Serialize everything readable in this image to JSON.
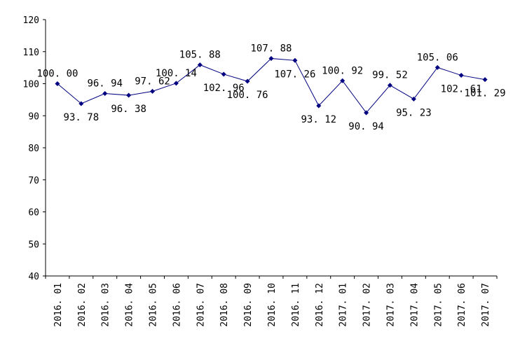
{
  "chart_data": {
    "type": "line",
    "title": "",
    "xlabel": "",
    "ylabel": "",
    "ylim": [
      40,
      120
    ],
    "y_ticks": [
      40,
      50,
      60,
      70,
      80,
      90,
      100,
      110,
      120
    ],
    "grid": false,
    "categories": [
      "2016.01",
      "2016.02",
      "2016.03",
      "2016.04",
      "2016.05",
      "2016.06",
      "2016.07",
      "2016.08",
      "2016.09",
      "2016.10",
      "2016.11",
      "2016.12",
      "2017.01",
      "2017.02",
      "2017.03",
      "2017.04",
      "2017.05",
      "2017.06",
      "2017.07"
    ],
    "values": [
      100.0,
      93.78,
      96.94,
      96.38,
      97.62,
      100.14,
      105.88,
      102.96,
      100.76,
      107.88,
      107.26,
      93.12,
      100.92,
      90.94,
      99.52,
      95.23,
      105.06,
      102.61,
      101.29
    ],
    "data_labels": [
      "100. 00",
      "93. 78",
      "96. 94",
      "96. 38",
      "97. 62",
      "100. 14",
      "105. 88",
      "102. 96",
      "100. 76",
      "107. 88",
      "107. 26",
      "93. 12",
      "100. 92",
      "90. 94",
      "99. 52",
      "95. 23",
      "105. 06",
      "102. 61",
      "101. 29"
    ],
    "x_tick_labels": [
      "2016. 01",
      "2016. 02",
      "2016. 03",
      "2016. 04",
      "2016. 05",
      "2016. 06",
      "2016. 07",
      "2016. 08",
      "2016. 09",
      "2016. 10",
      "2016. 11",
      "2016. 12",
      "2017. 01",
      "2017. 02",
      "2017. 03",
      "2017. 04",
      "2017. 05",
      "2017. 06",
      "2017. 07"
    ],
    "colors": {
      "line": "#000080",
      "marker": "#000080",
      "axis": "#000000"
    }
  }
}
